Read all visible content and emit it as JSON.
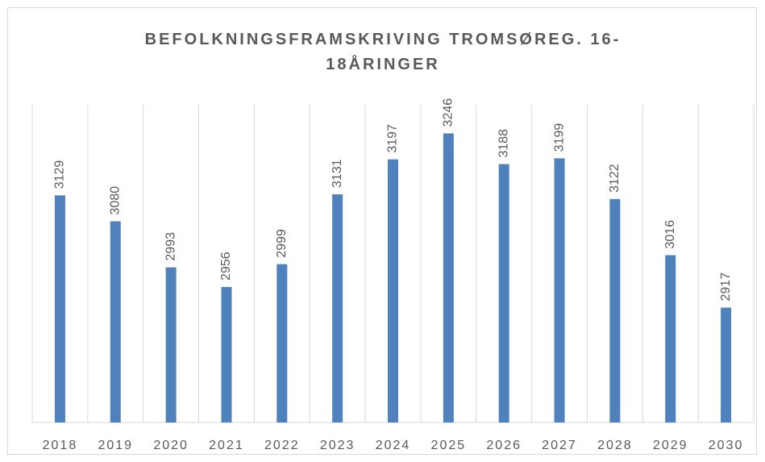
{
  "chart_data": {
    "type": "bar",
    "title": "BEFOLKNINGSFRAMSKRIVING TROMSØREG. 16-18ÅRINGER",
    "categories": [
      "2018",
      "2019",
      "2020",
      "2021",
      "2022",
      "2023",
      "2024",
      "2025",
      "2026",
      "2027",
      "2028",
      "2029",
      "2030"
    ],
    "values": [
      3129,
      3080,
      2993,
      2956,
      2999,
      3131,
      3197,
      3246,
      3188,
      3199,
      3122,
      3016,
      2917
    ],
    "color": "#4f81bd",
    "ylim": [
      2700,
      3300
    ]
  }
}
